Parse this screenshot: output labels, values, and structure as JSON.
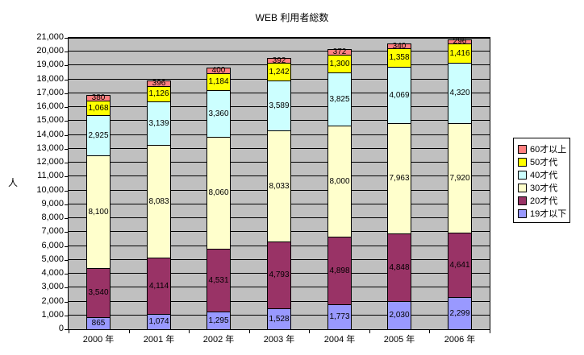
{
  "chart_data": {
    "type": "bar",
    "stacked": true,
    "title": "WEB 利用者総数",
    "xlabel": "",
    "ylabel": "人",
    "categories": [
      "2000 年",
      "2001 年",
      "2002 年",
      "2003 年",
      "2004 年",
      "2005 年",
      "2006 年"
    ],
    "series": [
      {
        "name": "19才以下",
        "color": "#9999FF",
        "values": [
          865,
          1074,
          1295,
          1528,
          1773,
          2030,
          2299
        ]
      },
      {
        "name": "20才代",
        "color": "#993366",
        "values": [
          3540,
          4114,
          4531,
          4793,
          4898,
          4848,
          4641
        ]
      },
      {
        "name": "30才代",
        "color": "#FFFFCC",
        "values": [
          8100,
          8083,
          8060,
          8033,
          8000,
          7963,
          7920
        ]
      },
      {
        "name": "40才代",
        "color": "#CCFFFF",
        "values": [
          2925,
          3139,
          3360,
          3589,
          3825,
          4069,
          4320
        ]
      },
      {
        "name": "50才代",
        "color": "#FFFF00",
        "values": [
          1068,
          1126,
          1184,
          1242,
          1300,
          1358,
          1416
        ]
      },
      {
        "name": "60才以上",
        "color": "#FF8080",
        "values": [
          380,
          396,
          400,
          392,
          372,
          340,
          296
        ]
      }
    ],
    "legend_order": [
      "60才以上",
      "50才代",
      "40才代",
      "30才代",
      "20才代",
      "19才以下"
    ],
    "legend_position": "right",
    "ylim": [
      0,
      21000
    ],
    "ytick_step": 1000,
    "grid": true,
    "data_labels": true,
    "plot_background": "#C0C0C0",
    "gridline_color": "#000000"
  }
}
